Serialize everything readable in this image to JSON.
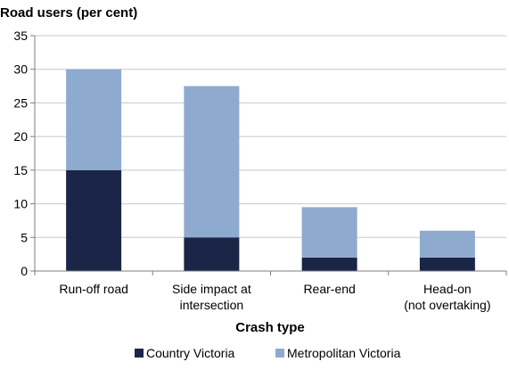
{
  "chart_data": {
    "type": "bar",
    "stacked": true,
    "ylabel": "Road users (per cent)",
    "xlabel": "Crash type",
    "ylim": [
      0,
      35
    ],
    "yticks": [
      0,
      5,
      10,
      15,
      20,
      25,
      30,
      35
    ],
    "grid": "horizontal",
    "legend": "bottom",
    "categories": [
      [
        "Run-off road"
      ],
      [
        "Side impact at",
        "intersection"
      ],
      [
        "Rear-end"
      ],
      [
        "Head-on",
        "(not overtaking)"
      ]
    ],
    "series": [
      {
        "name": "Country Victoria",
        "color": "#1b2547",
        "values": [
          15,
          5,
          2,
          2
        ]
      },
      {
        "name": "Metropolitan Victoria",
        "color": "#8eaacf",
        "values": [
          15,
          22.5,
          7.5,
          4
        ]
      }
    ]
  }
}
